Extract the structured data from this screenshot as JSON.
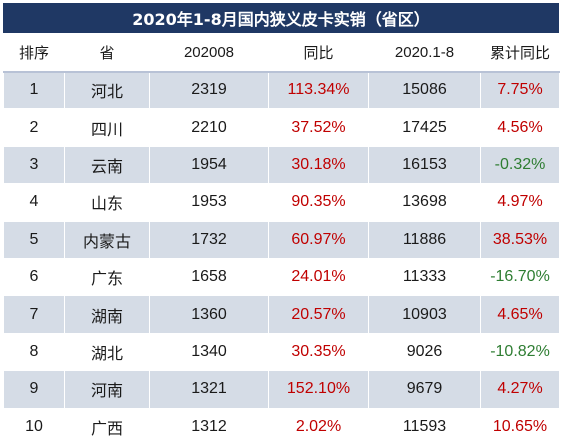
{
  "title": "2020年1-8月国内狭义皮卡实销（省区）",
  "chart_data": {
    "type": "table",
    "title": "2020年1-8月国内狭义皮卡实销（省区）",
    "columns": [
      "排序",
      "省",
      "202008",
      "同比",
      "2020.1-8",
      "累计同比"
    ],
    "rows": [
      [
        "1",
        "河北",
        "2319",
        "113.34%",
        "15086",
        "7.75%"
      ],
      [
        "2",
        "四川",
        "2210",
        "37.52%",
        "17425",
        "4.56%"
      ],
      [
        "3",
        "云南",
        "1954",
        "30.18%",
        "16153",
        "-0.32%"
      ],
      [
        "4",
        "山东",
        "1953",
        "90.35%",
        "13698",
        "4.97%"
      ],
      [
        "5",
        "内蒙古",
        "1732",
        "60.97%",
        "11886",
        "38.53%"
      ],
      [
        "6",
        "广东",
        "1658",
        "24.01%",
        "11333",
        "-16.70%"
      ],
      [
        "7",
        "湖南",
        "1360",
        "20.57%",
        "10903",
        "4.65%"
      ],
      [
        "8",
        "湖北",
        "1340",
        "30.35%",
        "9026",
        "-10.82%"
      ],
      [
        "9",
        "河南",
        "1321",
        "152.10%",
        "9679",
        "4.27%"
      ],
      [
        "10",
        "广西",
        "1312",
        "2.02%",
        "11593",
        "10.65%"
      ]
    ]
  },
  "colors": {
    "header_bg": "#1f3864",
    "row_stripe": "#d5dce6",
    "positive": "#c00000",
    "negative": "#2e7d32"
  }
}
